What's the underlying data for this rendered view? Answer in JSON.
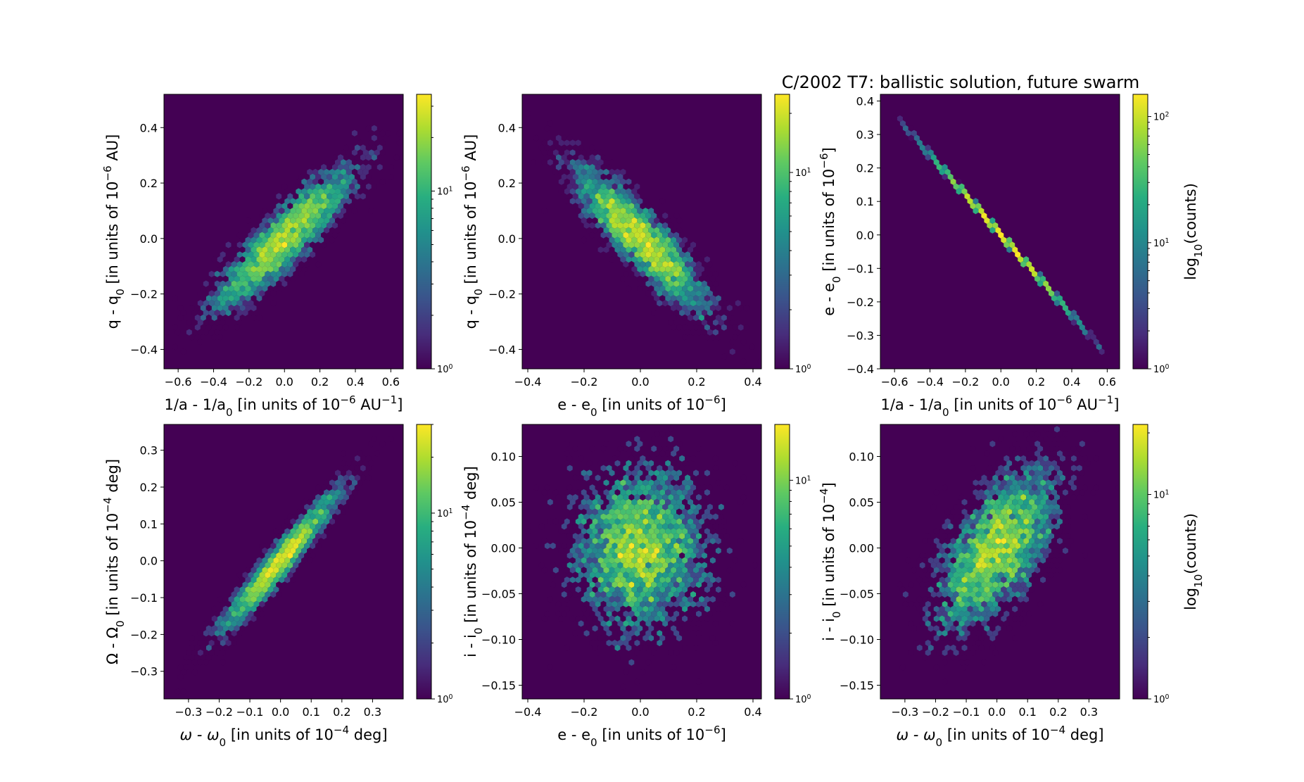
{
  "figure": {
    "suptitle": "C/2002 T7:  ballistic solution, future swarm"
  },
  "chart_data": [
    {
      "type": "heatmap",
      "subtype": "hexbin",
      "xlabel": {
        "pre": "1/a - 1/a",
        "sub": "0",
        "mid": " [in units of 10",
        "sup": "−6",
        "post": " AU",
        "sup2": "−1",
        "end": "]"
      },
      "ylabel": {
        "pre": "q - q",
        "sub": "0",
        "mid": " [in units of 10",
        "sup": "−6",
        "post": " AU]"
      },
      "xlim": [
        -0.68,
        0.67
      ],
      "ylim": [
        -0.47,
        0.52
      ],
      "xticks": [
        -0.6,
        -0.4,
        -0.2,
        0.0,
        0.2,
        0.4,
        0.6
      ],
      "xtick_labels": [
        "−0.6",
        "−0.4",
        "−0.2",
        "0.0",
        "0.2",
        "0.4",
        "0.6"
      ],
      "yticks": [
        -0.4,
        -0.2,
        0.0,
        0.2,
        0.4
      ],
      "ytick_labels": [
        "−0.4",
        "−0.2",
        "0.0",
        "0.2",
        "0.4"
      ],
      "distribution": {
        "mean": [
          0.0,
          0.0
        ],
        "sd": [
          0.2,
          0.13
        ],
        "corr": 0.9,
        "n": 4000,
        "max_count": 35
      },
      "colorbar": {
        "scale": "log",
        "min": 1,
        "max": 35,
        "tick_labels": [
          {
            "v": 1,
            "m": "10",
            "e": "0"
          },
          {
            "v": 10,
            "m": "10",
            "e": "1"
          }
        ],
        "label": ""
      }
    },
    {
      "type": "heatmap",
      "subtype": "hexbin",
      "xlabel": {
        "pre": "e - e",
        "sub": "0",
        "mid": " [in units of 10",
        "sup": "−6",
        "post": "]",
        "sup2": "",
        "end": ""
      },
      "ylabel": {
        "pre": "q - q",
        "sub": "0",
        "mid": " [in units of 10",
        "sup": "−6",
        "post": " AU]"
      },
      "xlim": [
        -0.42,
        0.43
      ],
      "ylim": [
        -0.47,
        0.52
      ],
      "xticks": [
        -0.4,
        -0.2,
        0.0,
        0.2,
        0.4
      ],
      "xtick_labels": [
        "−0.4",
        "−0.2",
        "0.0",
        "0.2",
        "0.4"
      ],
      "yticks": [
        -0.4,
        -0.2,
        0.0,
        0.2,
        0.4
      ],
      "ytick_labels": [
        "−0.4",
        "−0.2",
        "0.0",
        "0.2",
        "0.4"
      ],
      "distribution": {
        "mean": [
          0.0,
          0.0
        ],
        "sd": [
          0.12,
          0.13
        ],
        "corr": -0.88,
        "n": 4000,
        "max_count": 25
      },
      "colorbar": {
        "scale": "log",
        "min": 1,
        "max": 25,
        "tick_labels": [
          {
            "v": 1,
            "m": "10",
            "e": "0"
          },
          {
            "v": 10,
            "m": "10",
            "e": "1"
          }
        ],
        "label": ""
      }
    },
    {
      "type": "heatmap",
      "subtype": "hexbin",
      "xlabel": {
        "pre": "1/a - 1/a",
        "sub": "0",
        "mid": " [in units of 10",
        "sup": "−6",
        "post": " AU",
        "sup2": "−1",
        "end": "]"
      },
      "ylabel": {
        "pre": "e - e",
        "sub": "0",
        "mid": " [in units of 10",
        "sup": "−6",
        "post": "]"
      },
      "xlim": [
        -0.68,
        0.67
      ],
      "ylim": [
        -0.4,
        0.42
      ],
      "xticks": [
        -0.6,
        -0.4,
        -0.2,
        0.0,
        0.2,
        0.4,
        0.6
      ],
      "xtick_labels": [
        "−0.6",
        "−0.4",
        "−0.2",
        "0.0",
        "0.2",
        "0.4",
        "0.6"
      ],
      "yticks": [
        -0.4,
        -0.3,
        -0.2,
        -0.1,
        0.0,
        0.1,
        0.2,
        0.3,
        0.4
      ],
      "ytick_labels": [
        "−0.4",
        "−0.3",
        "−0.2",
        "−0.1",
        "0.0",
        "0.1",
        "0.2",
        "0.3",
        "0.4"
      ],
      "distribution": {
        "line": {
          "slope": -0.6,
          "xmin": -0.6,
          "xmax": 0.61
        },
        "max_count": 150
      },
      "colorbar": {
        "scale": "log",
        "min": 1,
        "max": 150,
        "tick_labels": [
          {
            "v": 1,
            "m": "10",
            "e": "0"
          },
          {
            "v": 10,
            "m": "10",
            "e": "1"
          },
          {
            "v": 100,
            "m": "10",
            "e": "2"
          }
        ],
        "label": {
          "pre": "log",
          "sub": "10",
          "post": "(counts)"
        }
      }
    },
    {
      "type": "heatmap",
      "subtype": "hexbin",
      "xlabel": {
        "pre": "ω - ω",
        "sub": "0",
        "mid": " [in units of 10",
        "sup": "−4",
        "post": " deg]",
        "sup2": "",
        "end": "",
        "italic_pre": true
      },
      "ylabel": {
        "pre": "Ω - Ω",
        "sub": "0",
        "mid": " [in units of 10",
        "sup": "−4",
        "post": " deg]"
      },
      "xlim": [
        -0.38,
        0.4
      ],
      "ylim": [
        -0.375,
        0.37
      ],
      "xticks": [
        -0.3,
        -0.2,
        -0.1,
        0.0,
        0.1,
        0.2,
        0.3
      ],
      "xtick_labels": [
        "−0.3",
        "−0.2",
        "−0.1",
        "0.0",
        "0.1",
        "0.2",
        "0.3"
      ],
      "yticks": [
        -0.3,
        -0.2,
        -0.1,
        0.0,
        0.1,
        0.2,
        0.3
      ],
      "ytick_labels": [
        "−0.3",
        "−0.2",
        "−0.1",
        "0.0",
        "0.1",
        "0.2",
        "0.3"
      ],
      "distribution": {
        "mean": [
          0.0,
          0.0
        ],
        "sd": [
          0.1,
          0.1
        ],
        "corr": 0.96,
        "n": 4000,
        "max_count": 30
      },
      "colorbar": {
        "scale": "log",
        "min": 1,
        "max": 30,
        "tick_labels": [
          {
            "v": 1,
            "m": "10",
            "e": "0"
          },
          {
            "v": 10,
            "m": "10",
            "e": "1"
          }
        ],
        "label": ""
      }
    },
    {
      "type": "heatmap",
      "subtype": "hexbin",
      "xlabel": {
        "pre": "e - e",
        "sub": "0",
        "mid": " [in units of 10",
        "sup": "−6",
        "post": "]",
        "sup2": "",
        "end": ""
      },
      "ylabel": {
        "pre": "i - i",
        "sub": "0",
        "mid": " [in units of 10",
        "sup": "−4",
        "post": " deg]"
      },
      "xlim": [
        -0.42,
        0.43
      ],
      "ylim": [
        -0.165,
        0.135
      ],
      "xticks": [
        -0.4,
        -0.2,
        0.0,
        0.2,
        0.4
      ],
      "xtick_labels": [
        "−0.4",
        "−0.2",
        "0.0",
        "0.2",
        "0.4"
      ],
      "yticks": [
        -0.15,
        -0.1,
        -0.05,
        0.0,
        0.05,
        0.1
      ],
      "ytick_labels": [
        "−0.15",
        "−0.10",
        "−0.05",
        "0.00",
        "0.05",
        "0.10"
      ],
      "distribution": {
        "mean": [
          0.0,
          0.0
        ],
        "sd": [
          0.12,
          0.045
        ],
        "corr": 0.0,
        "n": 4000,
        "max_count": 18
      },
      "colorbar": {
        "scale": "log",
        "min": 1,
        "max": 18,
        "tick_labels": [
          {
            "v": 1,
            "m": "10",
            "e": "0"
          },
          {
            "v": 10,
            "m": "10",
            "e": "1"
          }
        ],
        "label": ""
      }
    },
    {
      "type": "heatmap",
      "subtype": "hexbin",
      "xlabel": {
        "pre": "ω - ω",
        "sub": "0",
        "mid": " [in units of 10",
        "sup": "−4",
        "post": " deg]",
        "sup2": "",
        "end": "",
        "italic_pre": true
      },
      "ylabel": {
        "pre": "i - i",
        "sub": "0",
        "mid": " [in units of 10",
        "sup": "−4",
        "post": "]"
      },
      "xlim": [
        -0.38,
        0.4
      ],
      "ylim": [
        -0.165,
        0.135
      ],
      "xticks": [
        -0.3,
        -0.2,
        -0.1,
        0.0,
        0.1,
        0.2,
        0.3
      ],
      "xtick_labels": [
        "−0.3",
        "−0.2",
        "−0.1",
        "0.0",
        "0.1",
        "0.2",
        "0.3"
      ],
      "yticks": [
        -0.15,
        -0.1,
        -0.05,
        0.0,
        0.05,
        0.1
      ],
      "ytick_labels": [
        "−0.15",
        "−0.10",
        "−0.05",
        "0.00",
        "0.05",
        "0.10"
      ],
      "distribution": {
        "mean": [
          0.0,
          0.0
        ],
        "sd": [
          0.1,
          0.045
        ],
        "corr": 0.6,
        "n": 4000,
        "max_count": 22
      },
      "colorbar": {
        "scale": "log",
        "min": 1,
        "max": 22,
        "tick_labels": [
          {
            "v": 1,
            "m": "10",
            "e": "0"
          },
          {
            "v": 10,
            "m": "10",
            "e": "1"
          }
        ],
        "label": {
          "pre": "log",
          "sub": "10",
          "post": "(counts)"
        }
      }
    }
  ]
}
